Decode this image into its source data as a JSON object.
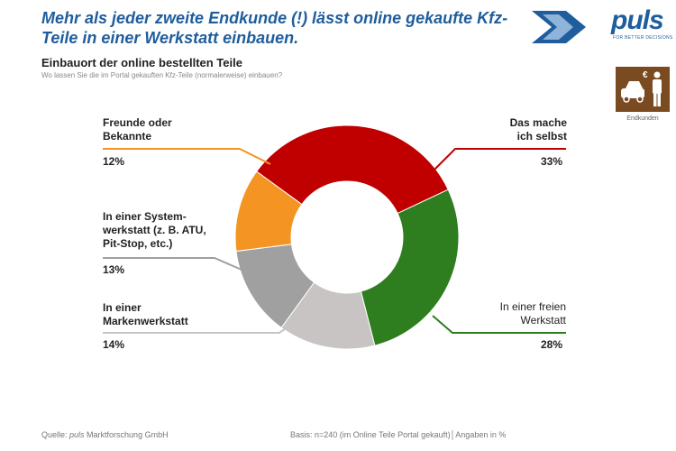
{
  "headline": "Mehr als jeder zweite Endkunde (!) lässt online gekaufte Kfz-Teile in einer Werkstatt einbauen.",
  "logo": {
    "text": "puls",
    "tagline": "FOR BETTER DECISIONS"
  },
  "badge": {
    "label": "Endkunden",
    "icon": "car-person-icon"
  },
  "footer": {
    "source_prefix": "Quelle: ",
    "source_brand": "puls",
    "source_suffix": " Marktforschung GmbH",
    "basis": "Basis: n=240 (im Online Teile Portal gekauft)│Angaben in %"
  },
  "chart_data": {
    "type": "pie",
    "donut": true,
    "title": "Einbauort der online bestellten Teile",
    "subtitle": "Wo lassen Sie die im Portal gekauften Kfz-Teile (normalerweise) einbauen?",
    "slices": [
      {
        "label": "Das mache ich selbst",
        "value": 33,
        "value_label": "33%",
        "color": "#c00000"
      },
      {
        "label": "In einer freien Werkstatt",
        "value": 28,
        "value_label": "28%",
        "color": "#2e7d1e"
      },
      {
        "label": "In einer Markenwerkstatt",
        "value": 14,
        "value_label": "14%",
        "color": "#c8c4c4"
      },
      {
        "label": "In einer System-werkstatt (z. B. ATU, Pit-Stop, etc.)",
        "value": 13,
        "value_label": "13%",
        "color": "#a0a0a0"
      },
      {
        "label": "Freunde oder Bekannte",
        "value": 12,
        "value_label": "12%",
        "color": "#f39423"
      }
    ],
    "label_lines": {
      "self": [
        "Das mache",
        "ich selbst"
      ],
      "free": [
        "In einer freien",
        "Werkstatt"
      ],
      "brand": [
        "In einer",
        "Markenwerkstatt"
      ],
      "system": [
        "In einer System-",
        "werkstatt (z. B. ATU,",
        "Pit-Stop, etc.)"
      ],
      "friends": [
        "Freunde oder",
        "Bekannte"
      ]
    }
  }
}
